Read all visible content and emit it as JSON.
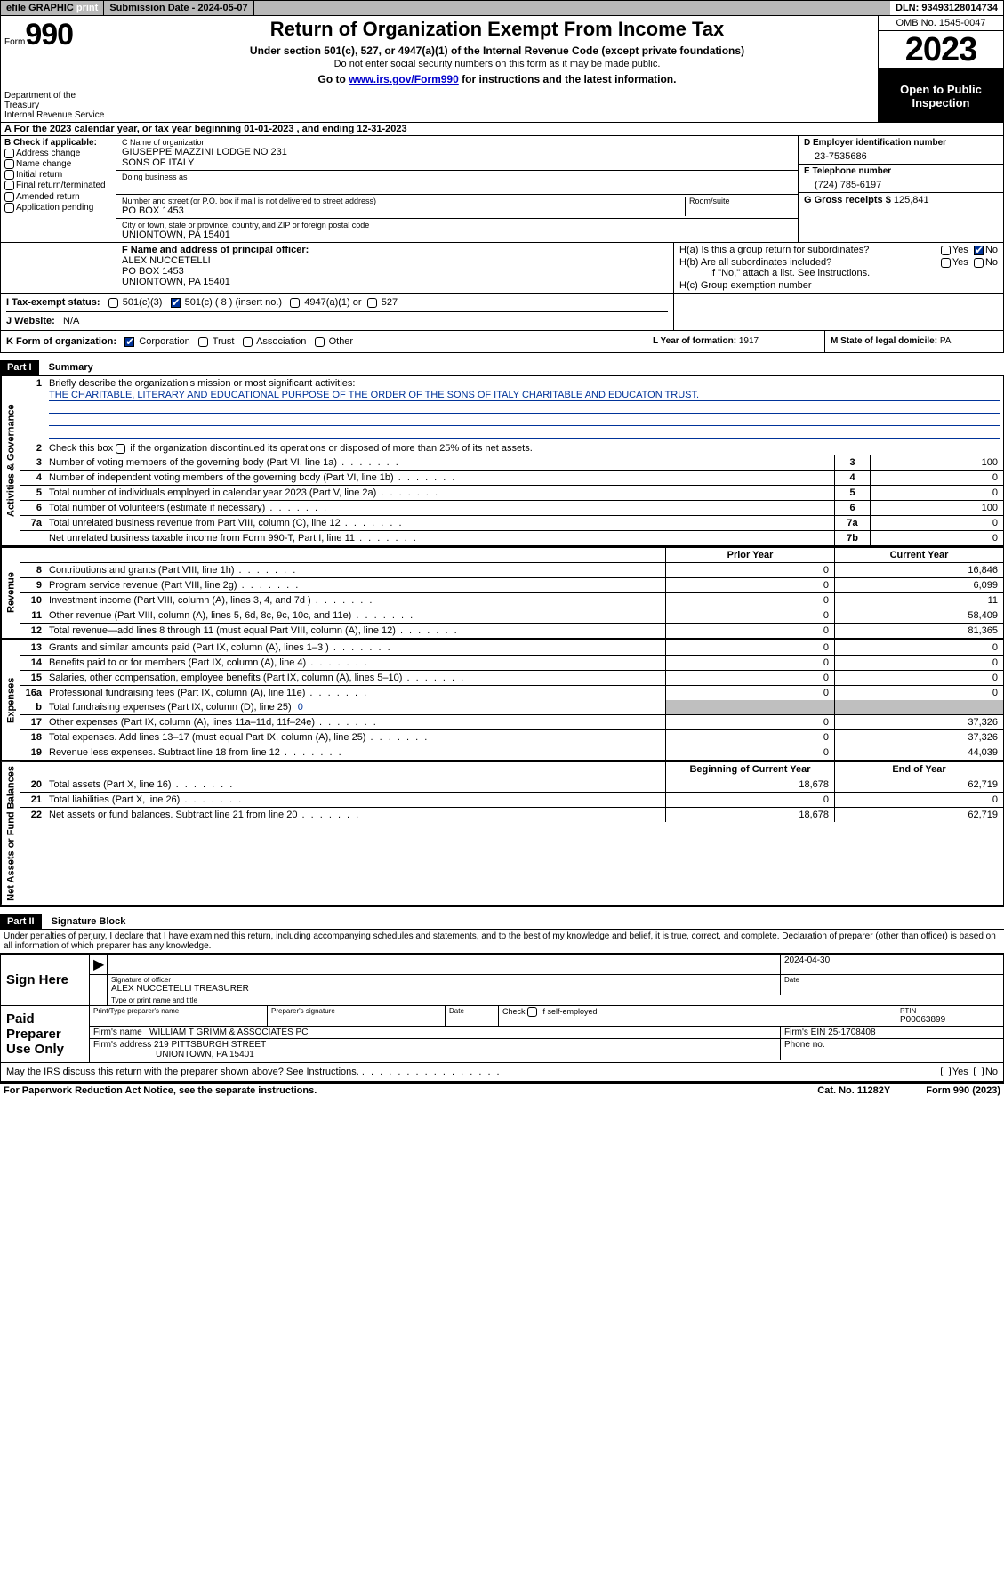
{
  "topbar": {
    "efile": "efile GRAPHIC",
    "print": "print",
    "submission": "Submission Date - 2024-05-07",
    "dln": "DLN: 93493128014734"
  },
  "header": {
    "form_word": "Form",
    "form_num": "990",
    "title": "Return of Organization Exempt From Income Tax",
    "sub1": "Under section 501(c), 527, or 4947(a)(1) of the Internal Revenue Code (except private foundations)",
    "sub2": "Do not enter social security numbers on this form as it may be made public.",
    "sub3_pre": "Go to ",
    "sub3_link": "www.irs.gov/Form990",
    "sub3_post": " for instructions and the latest information.",
    "dept": "Department of the Treasury\nInternal Revenue Service",
    "omb": "OMB No. 1545-0047",
    "year": "2023",
    "open": "Open to Public Inspection"
  },
  "rowA": "A  For the 2023 calendar year, or tax year beginning 01-01-2023   , and ending 12-31-2023",
  "boxB": {
    "label": "B Check if applicable:",
    "items": [
      "Address change",
      "Name change",
      "Initial return",
      "Final return/terminated",
      "Amended return",
      "Application pending"
    ]
  },
  "boxC": {
    "name_lbl": "C Name of organization",
    "name1": "GIUSEPPE MAZZINI LODGE NO 231",
    "name2": "SONS OF ITALY",
    "dba_lbl": "Doing business as",
    "addr_lbl": "Number and street (or P.O. box if mail is not delivered to street address)",
    "addr": "PO BOX 1453",
    "room_lbl": "Room/suite",
    "city_lbl": "City or town, state or province, country, and ZIP or foreign postal code",
    "city": "UNIONTOWN, PA  15401"
  },
  "boxD": {
    "lbl": "D Employer identification number",
    "val": "23-7535686"
  },
  "boxE": {
    "lbl": "E Telephone number",
    "val": "(724) 785-6197"
  },
  "boxG": {
    "lbl": "G Gross receipts $",
    "val": "125,841"
  },
  "boxF": {
    "lbl": "F  Name and address of principal officer:",
    "name": "ALEX NUCCETELLI",
    "addr1": "PO BOX 1453",
    "addr2": "UNIONTOWN, PA  15401"
  },
  "boxH": {
    "a_lbl": "H(a)  Is this a group return for subordinates?",
    "b_lbl": "H(b)  Are all subordinates included?",
    "b_note": "If \"No,\" attach a list. See instructions.",
    "c_lbl": "H(c)  Group exemption number ",
    "yes": "Yes",
    "no": "No"
  },
  "rowI": {
    "lbl": "I   Tax-exempt status:",
    "o1": "501(c)(3)",
    "o2": "501(c) ( 8 ) (insert no.)",
    "o3": "4947(a)(1) or",
    "o4": "527"
  },
  "rowJ": {
    "lbl": "J   Website: ",
    "val": "N/A"
  },
  "rowK": {
    "lbl": "K Form of organization:",
    "o1": "Corporation",
    "o2": "Trust",
    "o3": "Association",
    "o4": "Other"
  },
  "rowL": {
    "lbl": "L Year of formation:",
    "val": "1917"
  },
  "rowM": {
    "lbl": "M State of legal domicile:",
    "val": "PA"
  },
  "part1": {
    "hdr": "Part I",
    "title": "Summary",
    "tab_ag": "Activities & Governance",
    "tab_rev": "Revenue",
    "tab_exp": "Expenses",
    "tab_na": "Net Assets or Fund Balances",
    "l1_lbl": "Briefly describe the organization's mission or most significant activities:",
    "l1_val": "THE CHARITABLE, LITERARY AND EDUCATIONAL PURPOSE OF THE ORDER OF THE SONS OF ITALY CHARITABLE AND EDUCATON TRUST.",
    "l2": "Check this box        if the organization discontinued its operations or disposed of more than 25% of its net assets.",
    "rows_top": [
      {
        "n": "3",
        "d": "Number of voting members of the governing body (Part VI, line 1a)",
        "b": "3",
        "v": "100"
      },
      {
        "n": "4",
        "d": "Number of independent voting members of the governing body (Part VI, line 1b)",
        "b": "4",
        "v": "0"
      },
      {
        "n": "5",
        "d": "Total number of individuals employed in calendar year 2023 (Part V, line 2a)",
        "b": "5",
        "v": "0"
      },
      {
        "n": "6",
        "d": "Total number of volunteers (estimate if necessary)",
        "b": "6",
        "v": "100"
      },
      {
        "n": "7a",
        "d": "Total unrelated business revenue from Part VIII, column (C), line 12",
        "b": "7a",
        "v": "0"
      },
      {
        "n": "",
        "d": "Net unrelated business taxable income from Form 990-T, Part I, line 11",
        "b": "7b",
        "v": "0"
      }
    ],
    "col_prior": "Prior Year",
    "col_curr": "Current Year",
    "rev_rows": [
      {
        "n": "8",
        "d": "Contributions and grants (Part VIII, line 1h)",
        "p": "0",
        "c": "16,846"
      },
      {
        "n": "9",
        "d": "Program service revenue (Part VIII, line 2g)",
        "p": "0",
        "c": "6,099"
      },
      {
        "n": "10",
        "d": "Investment income (Part VIII, column (A), lines 3, 4, and 7d )",
        "p": "0",
        "c": "11"
      },
      {
        "n": "11",
        "d": "Other revenue (Part VIII, column (A), lines 5, 6d, 8c, 9c, 10c, and 11e)",
        "p": "0",
        "c": "58,409"
      },
      {
        "n": "12",
        "d": "Total revenue—add lines 8 through 11 (must equal Part VIII, column (A), line 12)",
        "p": "0",
        "c": "81,365"
      }
    ],
    "exp_rows": [
      {
        "n": "13",
        "d": "Grants and similar amounts paid (Part IX, column (A), lines 1–3 )",
        "p": "0",
        "c": "0"
      },
      {
        "n": "14",
        "d": "Benefits paid to or for members (Part IX, column (A), line 4)",
        "p": "0",
        "c": "0"
      },
      {
        "n": "15",
        "d": "Salaries, other compensation, employee benefits (Part IX, column (A), lines 5–10)",
        "p": "0",
        "c": "0"
      },
      {
        "n": "16a",
        "d": "Professional fundraising fees (Part IX, column (A), line 11e)",
        "p": "0",
        "c": "0"
      }
    ],
    "l16b_pre": "Total fundraising expenses (Part IX, column (D), line 25)",
    "l16b_val": "0",
    "exp_rows2": [
      {
        "n": "17",
        "d": "Other expenses (Part IX, column (A), lines 11a–11d, 11f–24e)",
        "p": "0",
        "c": "37,326"
      },
      {
        "n": "18",
        "d": "Total expenses. Add lines 13–17 (must equal Part IX, column (A), line 25)",
        "p": "0",
        "c": "37,326"
      },
      {
        "n": "19",
        "d": "Revenue less expenses. Subtract line 18 from line 12",
        "p": "0",
        "c": "44,039"
      }
    ],
    "col_beg": "Beginning of Current Year",
    "col_end": "End of Year",
    "na_rows": [
      {
        "n": "20",
        "d": "Total assets (Part X, line 16)",
        "p": "18,678",
        "c": "62,719"
      },
      {
        "n": "21",
        "d": "Total liabilities (Part X, line 26)",
        "p": "0",
        "c": "0"
      },
      {
        "n": "22",
        "d": "Net assets or fund balances. Subtract line 21 from line 20",
        "p": "18,678",
        "c": "62,719"
      }
    ]
  },
  "part2": {
    "hdr": "Part II",
    "title": "Signature Block",
    "decl": "Under penalties of perjury, I declare that I have examined this return, including accompanying schedules and statements, and to the best of my knowledge and belief, it is true, correct, and complete. Declaration of preparer (other than officer) is based on all information of which preparer has any knowledge.",
    "sign_here": "Sign Here",
    "sig_lbl": "Signature of officer",
    "sig_name": "ALEX NUCCETELLI TREASURER",
    "sig_type": "Type or print name and title",
    "date_lbl": "Date",
    "date_val": "2024-04-30",
    "paid": "Paid Preparer Use Only",
    "pp_name_lbl": "Print/Type preparer's name",
    "pp_sig_lbl": "Preparer's signature",
    "pp_check": "Check        if self-employed",
    "ptin_lbl": "PTIN",
    "ptin": "P00063899",
    "firm_name_lbl": "Firm's name  ",
    "firm_name": "WILLIAM T GRIMM & ASSOCIATES PC",
    "firm_ein_lbl": "Firm's EIN  ",
    "firm_ein": "25-1708408",
    "firm_addr_lbl": "Firm's address ",
    "firm_addr1": "219 PITTSBURGH STREET",
    "firm_addr2": "UNIONTOWN, PA  15401",
    "phone_lbl": "Phone no.",
    "discuss": "May the IRS discuss this return with the preparer shown above? See Instructions."
  },
  "footer": {
    "pra": "For Paperwork Reduction Act Notice, see the separate instructions.",
    "cat": "Cat. No. 11282Y",
    "form": "Form 990 (2023)"
  },
  "colors": {
    "link": "#0000cc",
    "uline": "#003399",
    "shade": "#bfbfbf",
    "topbar": "#b8b8b8"
  }
}
